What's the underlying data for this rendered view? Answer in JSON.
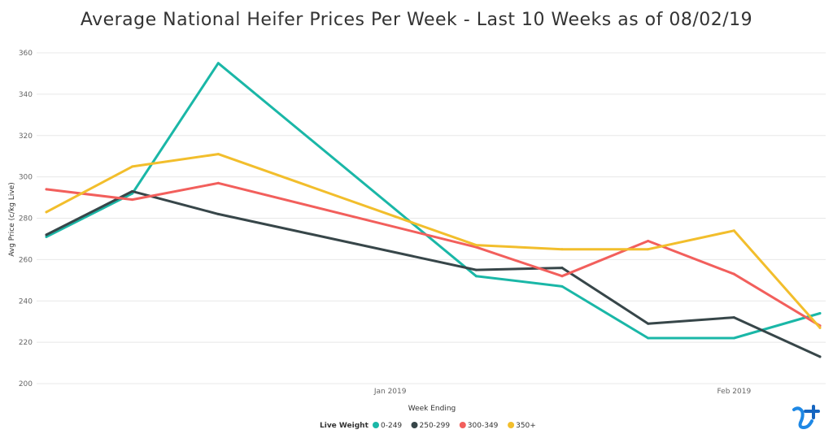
{
  "chart_data": {
    "type": "line",
    "title": "Average National Heifer Prices Per Week - Last 10 Weeks as of 08/02/19",
    "xlabel": "Week Ending",
    "ylabel": "Avg Price (c/kg Live)",
    "ylim": [
      200,
      360
    ],
    "yticks": [
      200,
      220,
      240,
      260,
      280,
      300,
      320,
      340,
      360
    ],
    "xrange": [
      "2018-12-07",
      "2019-02-08"
    ],
    "xticks": [
      {
        "label": "Jan 2019",
        "date": "2019-01-04"
      },
      {
        "label": "Feb 2019",
        "date": "2019-02-01"
      }
    ],
    "x": [
      "2018-12-07",
      "2018-12-14",
      "2018-12-21",
      "2019-01-11",
      "2019-01-18",
      "2019-01-25",
      "2019-02-01",
      "2019-02-08"
    ],
    "legend_title": "Live Weight",
    "legend_position": "bottom",
    "grid": true,
    "series": [
      {
        "name": "0-249",
        "color": "#1ab7a7",
        "values": [
          271,
          292,
          355,
          252,
          247,
          222,
          222,
          234
        ]
      },
      {
        "name": "250-299",
        "color": "#374649",
        "values": [
          272,
          293,
          282,
          255,
          256,
          229,
          232,
          213
        ]
      },
      {
        "name": "300-349",
        "color": "#f25f5c",
        "values": [
          294,
          289,
          297,
          266,
          252,
          269,
          253,
          228
        ]
      },
      {
        "name": "350+",
        "color": "#f2be2c",
        "values": [
          283,
          305,
          311,
          267,
          265,
          265,
          274,
          227
        ]
      }
    ]
  },
  "logo": {
    "icon": "brand-logo-icon",
    "colors": [
      "#1e88e5",
      "#0d47a1"
    ]
  }
}
